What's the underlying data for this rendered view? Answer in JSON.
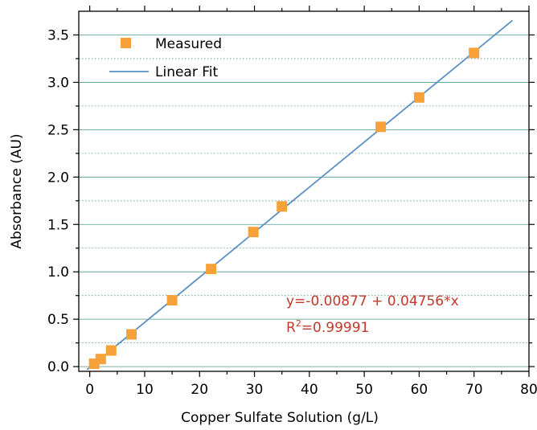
{
  "chart_data": {
    "type": "scatter",
    "xlabel": "Copper Sulfate Solution (g/L)",
    "ylabel": "Absorbance (AU)",
    "xlim": [
      -2,
      80
    ],
    "ylim": [
      -0.05,
      3.75
    ],
    "xticks": [
      0,
      10,
      20,
      30,
      40,
      50,
      60,
      70,
      80
    ],
    "yticks": [
      0.0,
      0.5,
      1.0,
      1.5,
      2.0,
      2.5,
      3.0,
      3.5
    ],
    "ytick_labels": [
      "0.0",
      "0.5",
      "1.0",
      "1.5",
      "2.0",
      "2.5",
      "3.0",
      "3.5"
    ],
    "grid": "horizontal (solid at major ticks, dotted at minor)",
    "legend_position": "top-left",
    "series": [
      {
        "name": "Measured",
        "kind": "scatter",
        "marker": "square",
        "color": "#F7A13A",
        "x": [
          0.8,
          2.0,
          3.9,
          7.6,
          15.0,
          22.1,
          29.8,
          35.0,
          53.0,
          60.0,
          70.0
        ],
        "y": [
          0.03,
          0.08,
          0.17,
          0.34,
          0.7,
          1.03,
          1.42,
          1.69,
          2.53,
          2.84,
          3.31
        ]
      },
      {
        "name": "Linear Fit",
        "kind": "line",
        "color": "#5A8FC4",
        "intercept": -0.00877,
        "slope": 0.04756,
        "x_range": [
          -0.5,
          77
        ]
      }
    ],
    "annotations": {
      "equation": "y=-0.00877 + 0.04756*x",
      "r2_prefix": "R",
      "r2_sup": "2",
      "r2_value": "=0.99991"
    },
    "grid_color": "#4a9a8a"
  }
}
